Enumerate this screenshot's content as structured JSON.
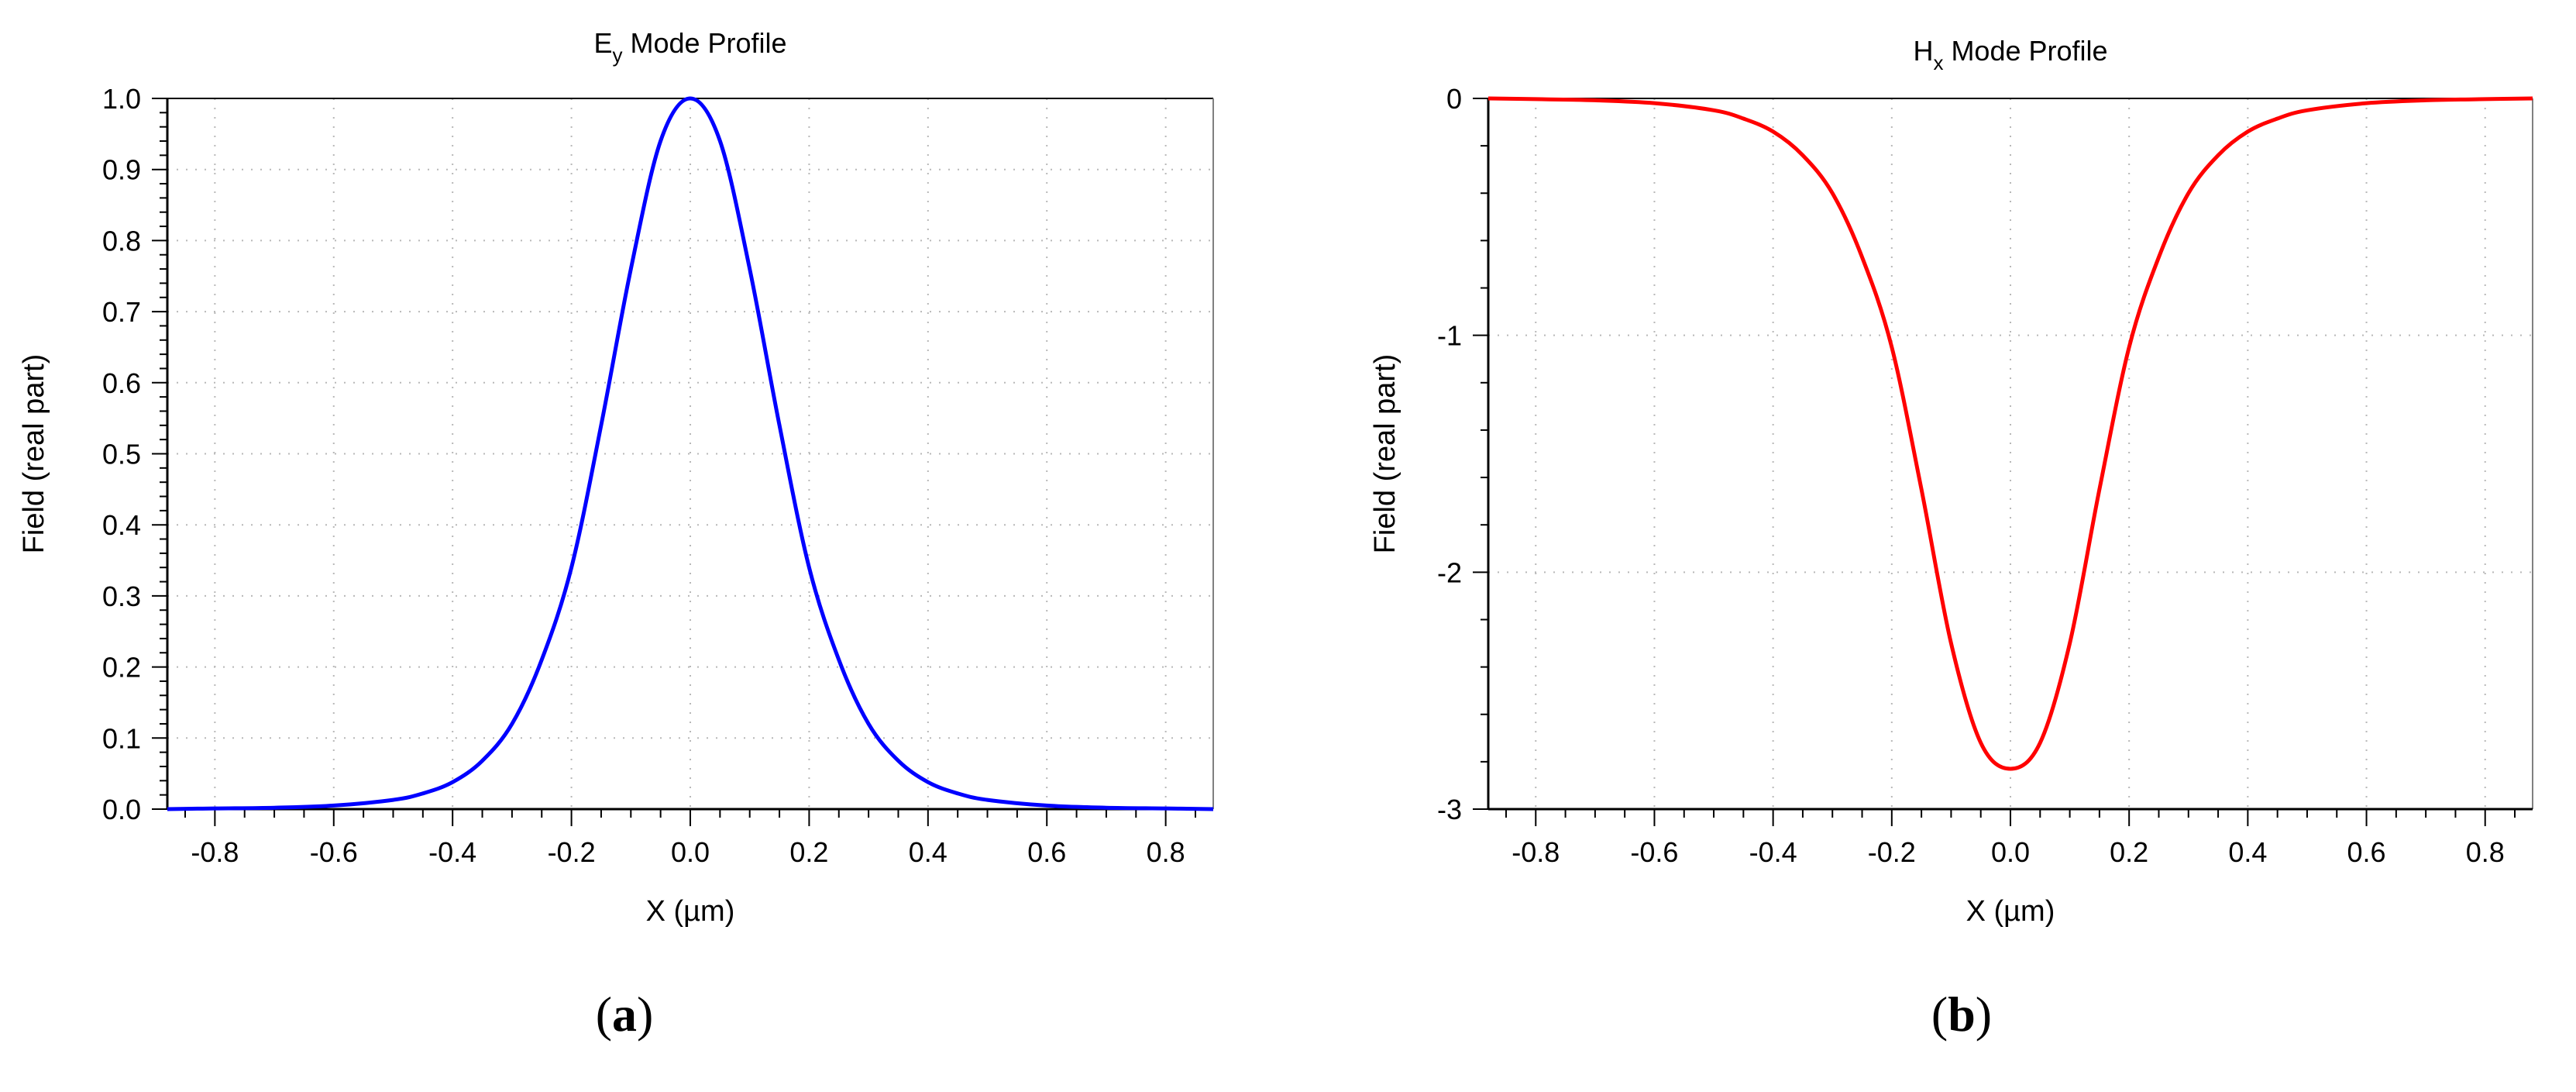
{
  "chart_data": [
    {
      "panel": "(a)",
      "panel_parts": {
        "open": "(",
        "letter": "a",
        "close": ")"
      },
      "type": "line",
      "title": {
        "main": "E",
        "sub": "y",
        "rest": " Mode Profile"
      },
      "title_text": "Ey Mode Profile",
      "xlabel": "X (µm)",
      "ylabel": "Field (real part)",
      "xlim": [
        -0.88,
        0.88
      ],
      "ylim": [
        0,
        1.0
      ],
      "xticks": [
        "-0.8",
        "-0.6",
        "-0.4",
        "-0.2",
        "0.0",
        "0.2",
        "0.4",
        "0.6",
        "0.8"
      ],
      "yticks": [
        "0.0",
        "0.1",
        "0.2",
        "0.3",
        "0.4",
        "0.5",
        "0.6",
        "0.7",
        "0.8",
        "0.9",
        "1.0"
      ],
      "grid": true,
      "color": "#0000ff",
      "series": [
        {
          "x": [
            -0.88,
            -0.8,
            -0.7,
            -0.6,
            -0.5,
            -0.45,
            -0.4,
            -0.35,
            -0.3,
            -0.25,
            -0.2,
            -0.15,
            -0.1,
            -0.05,
            0.0,
            0.05,
            0.1,
            0.15,
            0.2,
            0.25,
            0.3,
            0.35,
            0.4,
            0.45,
            0.5,
            0.6,
            0.7,
            0.8,
            0.88
          ],
          "y": [
            0.0,
            0.001,
            0.002,
            0.005,
            0.013,
            0.022,
            0.038,
            0.068,
            0.12,
            0.21,
            0.34,
            0.54,
            0.76,
            0.94,
            1.0,
            0.94,
            0.76,
            0.54,
            0.34,
            0.21,
            0.12,
            0.068,
            0.038,
            0.022,
            0.013,
            0.005,
            0.002,
            0.001,
            0.0
          ]
        }
      ]
    },
    {
      "panel": "(b)",
      "panel_parts": {
        "open": "(",
        "letter": "b",
        "close": ")"
      },
      "type": "line",
      "title": {
        "main": "H",
        "sub": "x",
        "rest": " Mode Profile"
      },
      "title_text": "Hx Mode Profile",
      "xlabel": "X (µm)",
      "ylabel": "Field (real part)",
      "xlim": [
        -0.88,
        0.88
      ],
      "ylim": [
        -3,
        0
      ],
      "xticks": [
        "-0.8",
        "-0.6",
        "-0.4",
        "-0.2",
        "0.0",
        "0.2",
        "0.4",
        "0.6",
        "0.8"
      ],
      "yticks": [
        "-3",
        "-2",
        "-1",
        "0"
      ],
      "grid": true,
      "color": "#ff0000",
      "series": [
        {
          "x": [
            -0.88,
            -0.8,
            -0.7,
            -0.6,
            -0.5,
            -0.45,
            -0.4,
            -0.35,
            -0.3,
            -0.25,
            -0.2,
            -0.15,
            -0.1,
            -0.05,
            0.0,
            0.05,
            0.1,
            0.15,
            0.2,
            0.25,
            0.3,
            0.35,
            0.4,
            0.45,
            0.5,
            0.6,
            0.7,
            0.8,
            0.88
          ],
          "y": [
            0.0,
            -0.003,
            -0.008,
            -0.02,
            -0.05,
            -0.085,
            -0.14,
            -0.24,
            -0.4,
            -0.67,
            -1.05,
            -1.65,
            -2.3,
            -2.72,
            -2.83,
            -2.72,
            -2.3,
            -1.65,
            -1.05,
            -0.67,
            -0.4,
            -0.24,
            -0.14,
            -0.085,
            -0.05,
            -0.02,
            -0.008,
            -0.003,
            0.0
          ]
        }
      ]
    }
  ]
}
